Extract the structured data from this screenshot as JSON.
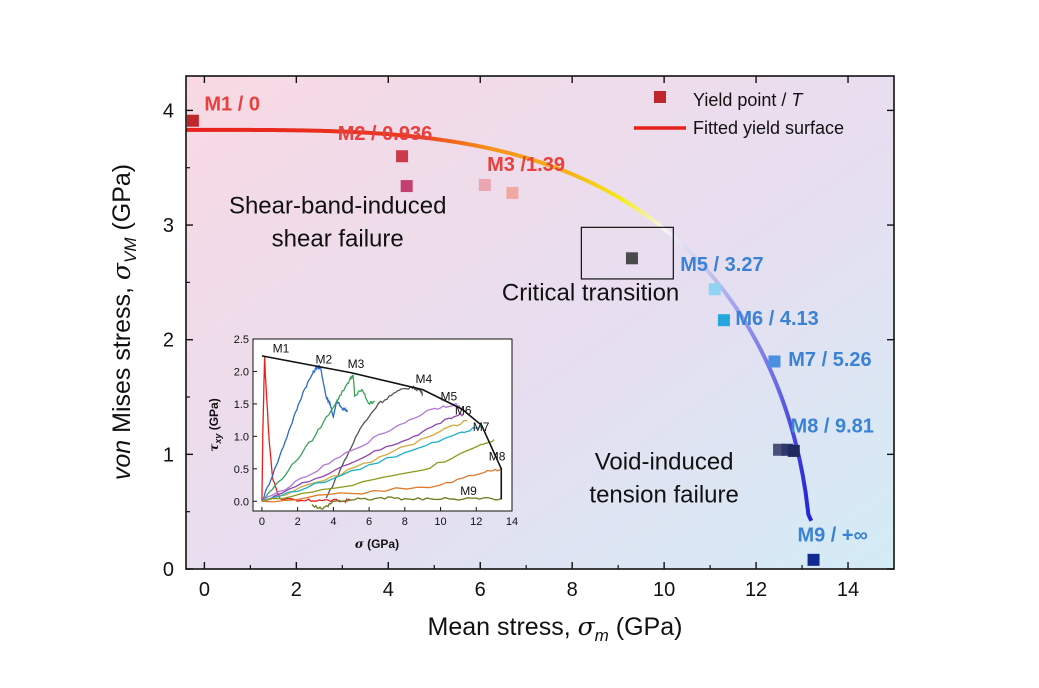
{
  "chart_data": [
    {
      "type": "scatter",
      "xlabel_main": "Mean stress, ",
      "xlabel_sym": "σ",
      "xlabel_sub": "m",
      "xlabel_unit": " (GPa)",
      "ylabel_italic": "von",
      "ylabel_main": " Mises stress, ",
      "ylabel_sym": "σ",
      "ylabel_sub": "VM",
      "ylabel_unit": " (GPa)",
      "xlim": [
        -0.4,
        15
      ],
      "ylim": [
        0,
        4.3
      ],
      "xticks": [
        0,
        2,
        4,
        6,
        8,
        10,
        12,
        14
      ],
      "yticks": [
        0,
        1,
        2,
        3,
        4
      ],
      "grid": false,
      "legend_position": "top-right",
      "legend": [
        {
          "label": "Yield point / ",
          "label_italic": "T",
          "marker": "square",
          "color": "#c0272d"
        },
        {
          "label": "Fitted yield surface",
          "marker": "line",
          "color": "#e8201c"
        }
      ],
      "fitted_surface": {
        "a": 3.83,
        "b": 13.2,
        "n": 3.3,
        "color_stops": [
          {
            "x": -0.4,
            "color": "#e8201c"
          },
          {
            "x": 4.5,
            "color": "#ea3a1e"
          },
          {
            "x": 6.2,
            "color": "#f5901d"
          },
          {
            "x": 8.0,
            "color": "#f2b61a"
          },
          {
            "x": 9.1,
            "color": "#f7ec19"
          },
          {
            "x": 10.0,
            "color": "#f5f5f5"
          },
          {
            "x": 11.2,
            "color": "#b8b8ee"
          },
          {
            "x": 12.4,
            "color": "#6e6ee8"
          },
          {
            "x": 13.2,
            "color": "#2020d8"
          }
        ]
      },
      "yield_points": [
        {
          "x": -0.25,
          "y": 3.91,
          "color": "#c0272d"
        },
        {
          "x": 4.3,
          "y": 3.6,
          "color": "#cb3a4a"
        },
        {
          "x": 4.4,
          "y": 3.34,
          "color": "#c44070"
        },
        {
          "x": 6.1,
          "y": 3.35,
          "color": "#eba6b2"
        },
        {
          "x": 6.7,
          "y": 3.28,
          "color": "#f0a8a2"
        },
        {
          "x": 9.3,
          "y": 2.71,
          "color": "#4a4a4a"
        },
        {
          "x": 11.1,
          "y": 2.44,
          "color": "#8fd4f2"
        },
        {
          "x": 11.3,
          "y": 2.17,
          "color": "#25a6df"
        },
        {
          "x": 12.4,
          "y": 1.81,
          "color": "#4b8fe0"
        },
        {
          "x": 12.5,
          "y": 1.04,
          "color": "#48507a"
        },
        {
          "x": 12.68,
          "y": 1.04,
          "color": "#2e386a"
        },
        {
          "x": 12.82,
          "y": 1.03,
          "color": "#1f2a60"
        },
        {
          "x": 13.25,
          "y": 0.08,
          "color": "#102a92"
        }
      ],
      "point_labels": [
        {
          "text": "M1 / 0",
          "x": 0.0,
          "y": 4.0,
          "color": "#e8403e"
        },
        {
          "text": "M2 / 0.936",
          "x": 2.9,
          "y": 3.74,
          "color": "#e8403e"
        },
        {
          "text": "M3 /1.39",
          "x": 6.15,
          "y": 3.47,
          "color": "#e8403e"
        },
        {
          "text": "M5 / 3.27",
          "x": 10.35,
          "y": 2.6,
          "color": "#3b82d6"
        },
        {
          "text": "M6 / 4.13",
          "x": 11.55,
          "y": 2.13,
          "color": "#3b82d6"
        },
        {
          "text": "M7 / 5.26",
          "x": 12.7,
          "y": 1.77,
          "color": "#3b82d6"
        },
        {
          "text": "M8 / 9.81",
          "x": 12.75,
          "y": 1.19,
          "color": "#3b82d6"
        },
        {
          "text": "M9 / +∞",
          "x": 12.9,
          "y": 0.24,
          "color": "#3b82d6"
        }
      ],
      "annotations": [
        {
          "lines": [
            "Shear-band-induced",
            "shear failure"
          ],
          "x": 2.9,
          "y": 3.1
        },
        {
          "lines": [
            "Critical transition"
          ],
          "x": 8.4,
          "y": 2.34
        },
        {
          "lines": [
            "Void-induced",
            "tension failure"
          ],
          "x": 10.0,
          "y": 0.87
        }
      ],
      "highlight_box": {
        "x0": 8.2,
        "x1": 10.2,
        "y0": 2.53,
        "y1": 2.98
      }
    },
    {
      "type": "line",
      "inset": true,
      "xlabel_sym": "σ",
      "xlabel_unit": " (GPa)",
      "ylabel_sym": "τ",
      "ylabel_sub": "xy",
      "ylabel_unit": " (GPa)",
      "xlim": [
        -0.5,
        14
      ],
      "ylim": [
        -0.15,
        2.5
      ],
      "xticks": [
        0,
        2,
        4,
        6,
        8,
        10,
        12,
        14
      ],
      "yticks": [
        0.0,
        0.5,
        1.0,
        1.5,
        2.0,
        2.5
      ],
      "xtick_labels": [
        "0",
        "2",
        "4",
        "6",
        "8",
        "10",
        "12",
        "14"
      ],
      "ytick_labels": [
        "0.0",
        "0.5",
        "1.0",
        "1.5",
        "2.0",
        "2.5"
      ],
      "envelope": {
        "color": "#111111",
        "x": [
          0,
          5.0,
          9.0,
          11.2,
          12.3,
          13.4,
          13.4
        ],
        "y": [
          2.24,
          1.98,
          1.72,
          1.42,
          1.17,
          0.5,
          0.03
        ]
      },
      "labels": [
        {
          "text": "M1",
          "x": 0.6,
          "y": 2.29
        },
        {
          "text": "M2",
          "x": 3.0,
          "y": 2.12
        },
        {
          "text": "M3",
          "x": 4.8,
          "y": 2.05
        },
        {
          "text": "M4",
          "x": 8.6,
          "y": 1.82
        },
        {
          "text": "M5",
          "x": 10.0,
          "y": 1.55
        },
        {
          "text": "M6",
          "x": 10.8,
          "y": 1.34
        },
        {
          "text": "M7",
          "x": 11.8,
          "y": 1.08
        },
        {
          "text": "M8",
          "x": 12.7,
          "y": 0.63
        },
        {
          "text": "M9",
          "x": 11.1,
          "y": 0.1
        }
      ],
      "series": [
        {
          "color": "#e8201c",
          "x": [
            0,
            0.05,
            0.15,
            0.2,
            0.3,
            0.4,
            0.6,
            1.0,
            2.0,
            3.2,
            4.5,
            5.0
          ],
          "y": [
            0,
            1.05,
            2.24,
            1.9,
            1.45,
            0.95,
            0.35,
            0.05,
            0.0,
            0.02,
            0.0,
            0.02
          ]
        },
        {
          "color": "#2a6ad0",
          "x": [
            0,
            0.8,
            1.6,
            2.3,
            2.8,
            3.1,
            3.3,
            3.6,
            3.8,
            4.0,
            4.2,
            4.5,
            4.8
          ],
          "y": [
            0,
            0.55,
            1.15,
            1.68,
            1.95,
            2.08,
            2.04,
            1.6,
            1.52,
            1.3,
            1.55,
            1.42,
            1.4
          ]
        },
        {
          "color": "#3aa35a",
          "x": [
            0,
            1.5,
            3.0,
            4.2,
            4.8,
            5.1,
            5.2,
            5.6,
            6.0,
            6.3
          ],
          "y": [
            0,
            0.48,
            1.02,
            1.55,
            1.82,
            1.95,
            1.62,
            1.72,
            1.5,
            1.55
          ]
        },
        {
          "color": "#555555",
          "x": [
            3.6,
            4.5,
            5.5,
            6.5,
            7.5,
            8.3,
            8.8,
            9.0
          ],
          "y": [
            0.05,
            0.55,
            1.12,
            1.5,
            1.68,
            1.76,
            1.72,
            1.66
          ]
        },
        {
          "color": "#b07ad6",
          "x": [
            0,
            2.5,
            5.0,
            7.5,
            9.5,
            10.8,
            11.2
          ],
          "y": [
            0,
            0.38,
            0.78,
            1.15,
            1.42,
            1.5,
            1.42
          ]
        },
        {
          "color": "#8e44ad",
          "x": [
            0,
            3.0,
            6.0,
            8.5,
            10.5,
            11.3
          ],
          "y": [
            0,
            0.35,
            0.72,
            1.0,
            1.28,
            1.35
          ]
        },
        {
          "color": "#d4a83a",
          "x": [
            0,
            3.5,
            7.0,
            10.0,
            11.5
          ],
          "y": [
            0,
            0.32,
            0.72,
            1.08,
            1.24
          ]
        },
        {
          "color": "#1ab0c8",
          "x": [
            0,
            4.0,
            8.0,
            11.0,
            12.3
          ],
          "y": [
            0,
            0.35,
            0.75,
            1.05,
            1.17
          ]
        },
        {
          "color": "#8a9a1e",
          "x": [
            0,
            4.5,
            9.0,
            12.3,
            13.0
          ],
          "y": [
            0,
            0.22,
            0.48,
            0.88,
            0.95
          ]
        },
        {
          "color": "#e07a2a",
          "x": [
            0,
            5.0,
            10.0,
            12.5,
            13.4
          ],
          "y": [
            0,
            0.12,
            0.25,
            0.45,
            0.5
          ]
        },
        {
          "color": "#6b7a1e",
          "x": [
            2.8,
            3.4,
            4.0,
            5.0,
            6.5,
            8.0,
            10.0,
            12.0,
            13.4
          ],
          "y": [
            -0.05,
            -0.12,
            0.0,
            0.02,
            0.05,
            0.04,
            0.03,
            0.05,
            0.04
          ]
        }
      ]
    }
  ]
}
